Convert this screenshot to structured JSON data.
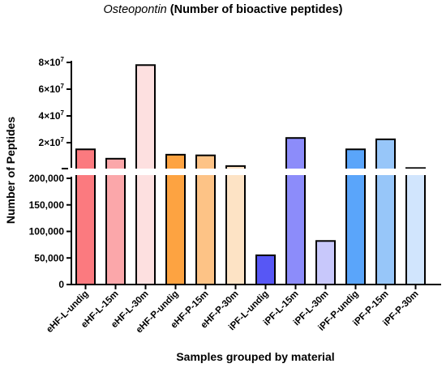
{
  "chart_data": {
    "type": "bar",
    "title_italic": "Osteopontin",
    "title_rest": " (Number of bioactive peptides)",
    "xlabel": "Samples grouped by material",
    "ylabel": "Number of Peptides",
    "categories": [
      "eHF-L-undig",
      "eHF-L-15m",
      "eHF-L-30m",
      "eHF-P-undig",
      "eHF-P-15m",
      "eHF-P-30m",
      "iPF-L-undig",
      "iPF-L-15m",
      "iPF-L-30m",
      "iPF-P-undig",
      "iPF-P-15m",
      "iPF-P-30m"
    ],
    "values": [
      15000000,
      8000000,
      78000000,
      11000000,
      10500000,
      2500000,
      55000,
      23500000,
      82000,
      15000000,
      22500000,
      1000000
    ],
    "colors": [
      "#fb7a7f",
      "#fba7aa",
      "#fde0e0",
      "#fda341",
      "#fdc386",
      "#fde3c5",
      "#5757f5",
      "#8c8cfa",
      "#c8c8fb",
      "#5aa5fa",
      "#97c6f9",
      "#d1e5fd"
    ],
    "axis_break": true,
    "lower_segment": {
      "ylim": [
        0,
        200000
      ],
      "ticks": [
        0,
        50000,
        100000,
        150000,
        200000
      ],
      "tick_labels": [
        "0",
        "50,000",
        "100,000",
        "150,000",
        "200,000"
      ]
    },
    "upper_segment": {
      "ylim": [
        0,
        80000000
      ],
      "ticks": [
        20000000,
        40000000,
        60000000,
        80000000
      ],
      "tick_labels": [
        "2×10",
        "4×10",
        "6×10",
        "8×10"
      ],
      "tick_exponent": "7"
    },
    "grid": false,
    "legend": "none"
  }
}
